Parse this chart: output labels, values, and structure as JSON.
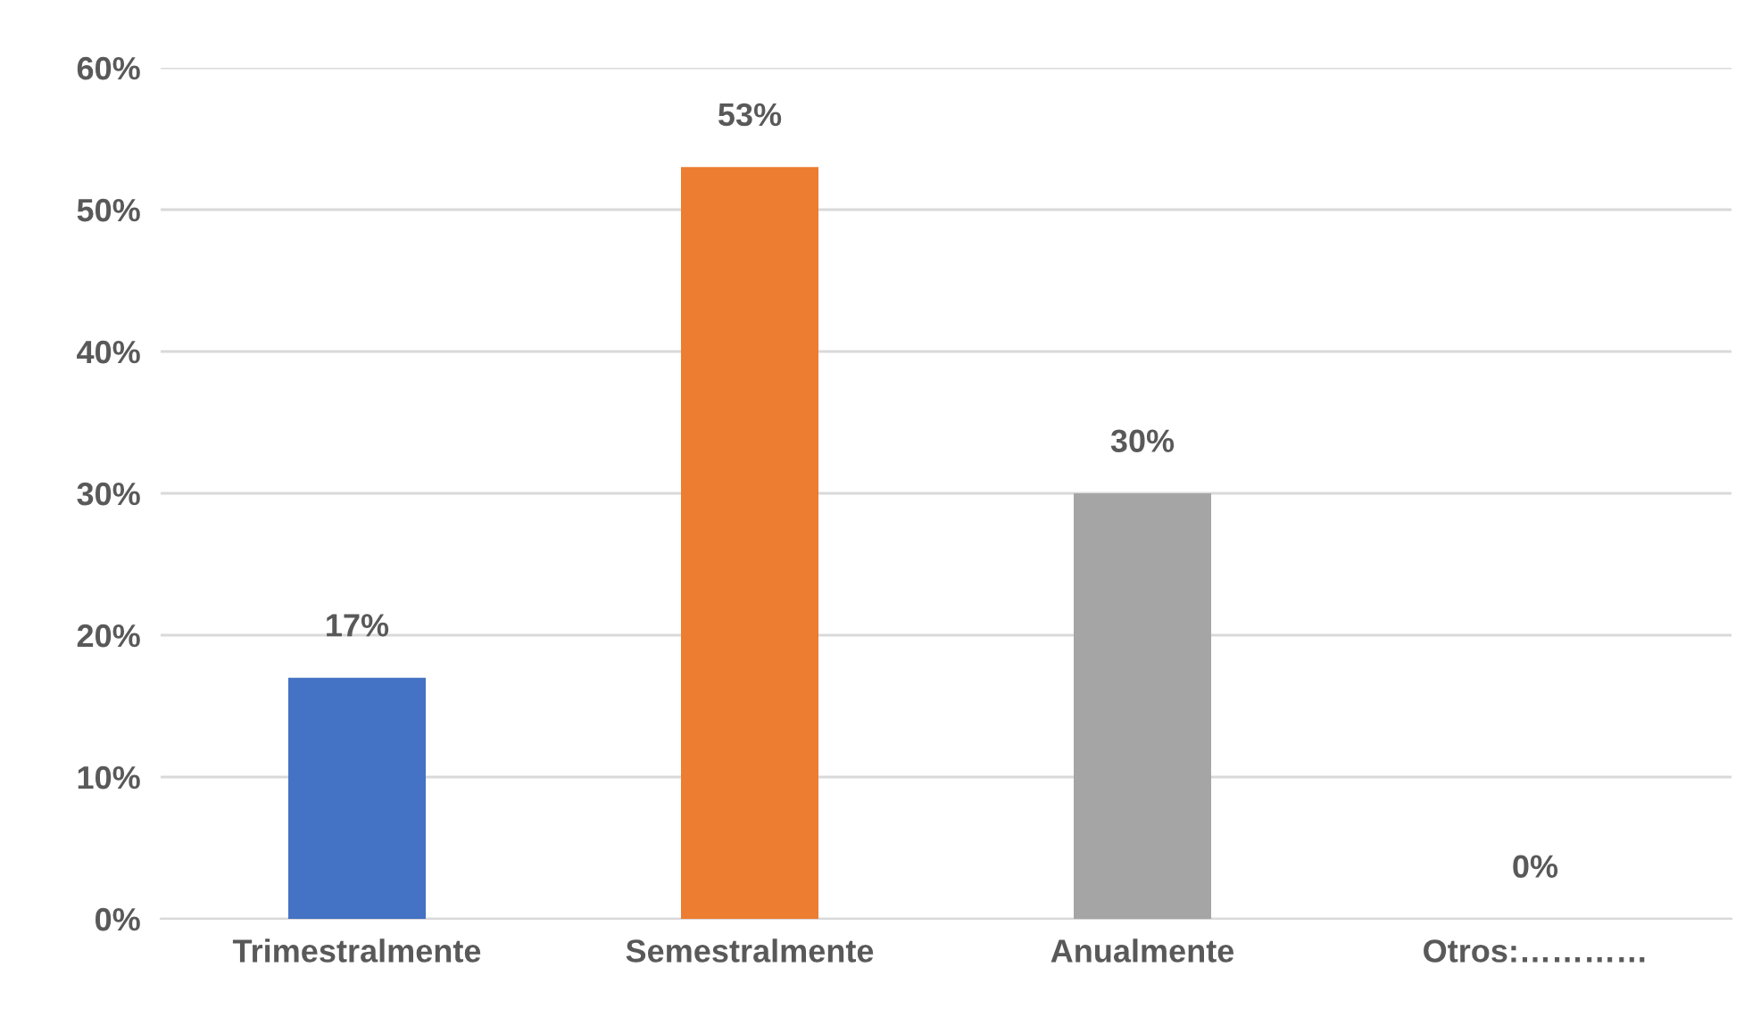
{
  "chart_data": {
    "type": "bar",
    "categories": [
      "Trimestralmente",
      "Semestralmente",
      "Anualmente",
      "Otros:…………"
    ],
    "values": [
      17,
      53,
      30,
      0
    ],
    "colors": [
      "#4472c4",
      "#ed7d31",
      "#a5a5a5",
      "#ffc000"
    ],
    "value_labels": [
      "17%",
      "53%",
      "30%",
      "0%"
    ],
    "ylim": [
      0,
      60
    ],
    "yticks": [
      {
        "value": 0,
        "label": "0%"
      },
      {
        "value": 10,
        "label": "10%"
      },
      {
        "value": 20,
        "label": "20%"
      },
      {
        "value": 30,
        "label": "30%"
      },
      {
        "value": 40,
        "label": "40%"
      },
      {
        "value": 50,
        "label": "50%"
      },
      {
        "value": 60,
        "label": "60%"
      }
    ],
    "grid": "y",
    "legend": false
  }
}
